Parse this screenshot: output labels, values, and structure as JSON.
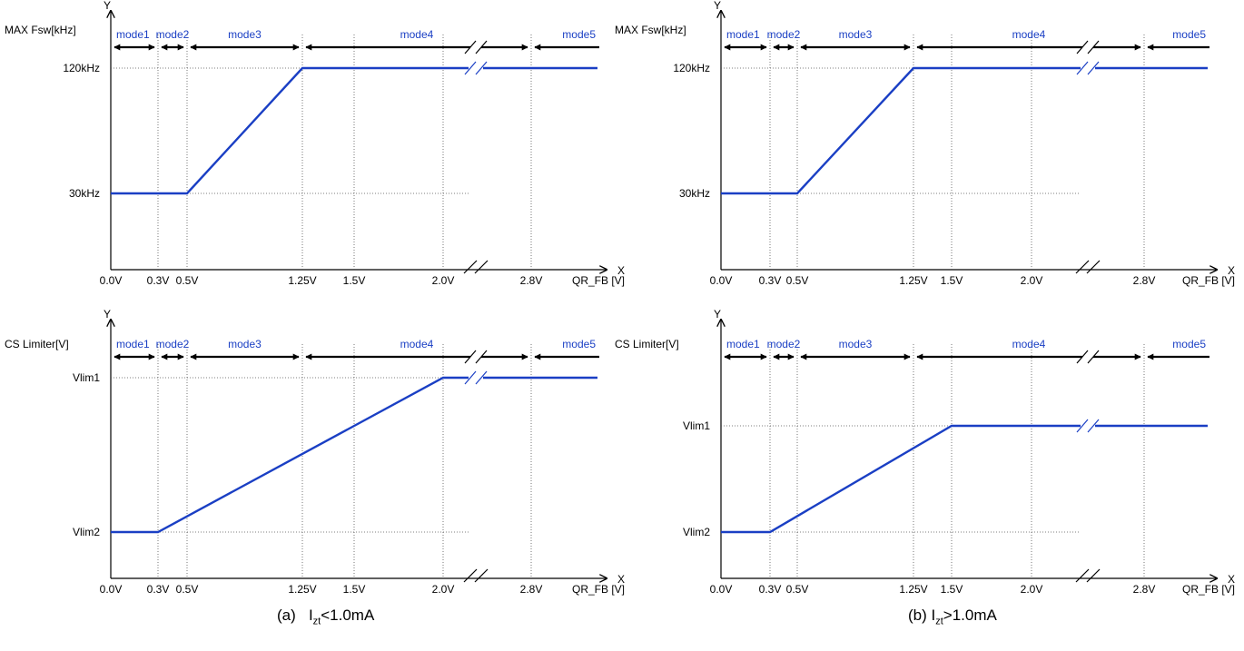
{
  "chart_data": [
    {
      "type": "line",
      "panel": "a-top",
      "y_label": "MAX Fsw[kHz]",
      "x_label": "QR_FB [V]",
      "x_axis": "X",
      "y_axis": "Y",
      "x_ticks": [
        "0.0V",
        "0.3V",
        "0.5V",
        "1.25V",
        "1.5V",
        "2.0V",
        "2.8V"
      ],
      "y_ticks": [
        "30kHz",
        "120kHz"
      ],
      "modes": [
        "mode1",
        "mode2",
        "mode3",
        "mode4",
        "mode5"
      ],
      "series": [
        {
          "points": [
            [
              0.0,
              30
            ],
            [
              0.5,
              30
            ],
            [
              1.25,
              120
            ],
            [
              2.8,
              120
            ]
          ]
        }
      ]
    },
    {
      "type": "line",
      "panel": "a-bottom",
      "y_label": "CS Limiter[V]",
      "x_label": "QR_FB [V]",
      "x_axis": "X",
      "y_axis": "Y",
      "x_ticks": [
        "0.0V",
        "0.3V",
        "0.5V",
        "1.25V",
        "1.5V",
        "2.0V",
        "2.8V"
      ],
      "y_ticks": [
        "Vlim2",
        "Vlim1"
      ],
      "modes": [
        "mode1",
        "mode2",
        "mode3",
        "mode4",
        "mode5"
      ],
      "series": [
        {
          "points": [
            [
              0.0,
              "Vlim2"
            ],
            [
              0.3,
              "Vlim2"
            ],
            [
              2.0,
              "Vlim1"
            ],
            [
              2.8,
              "Vlim1"
            ]
          ]
        }
      ]
    },
    {
      "type": "line",
      "panel": "b-top",
      "y_label": "MAX Fsw[kHz]",
      "x_label": "QR_FB [V]",
      "x_axis": "X",
      "y_axis": "Y",
      "x_ticks": [
        "0.0V",
        "0.3V",
        "0.5V",
        "1.25V",
        "1.5V",
        "2.0V",
        "2.8V"
      ],
      "y_ticks": [
        "30kHz",
        "120kHz"
      ],
      "modes": [
        "mode1",
        "mode2",
        "mode3",
        "mode4",
        "mode5"
      ],
      "series": [
        {
          "points": [
            [
              0.0,
              30
            ],
            [
              0.5,
              30
            ],
            [
              1.25,
              120
            ],
            [
              2.8,
              120
            ]
          ]
        }
      ]
    },
    {
      "type": "line",
      "panel": "b-bottom",
      "y_label": "CS Limiter[V]",
      "x_label": "QR_FB [V]",
      "x_axis": "X",
      "y_axis": "Y",
      "x_ticks": [
        "0.0V",
        "0.3V",
        "0.5V",
        "1.25V",
        "1.5V",
        "2.0V",
        "2.8V"
      ],
      "y_ticks": [
        "Vlim2",
        "Vlim1"
      ],
      "modes": [
        "mode1",
        "mode2",
        "mode3",
        "mode4",
        "mode5"
      ],
      "series": [
        {
          "points": [
            [
              0.0,
              "Vlim2"
            ],
            [
              0.3,
              "Vlim2"
            ],
            [
              1.5,
              "Vlim1"
            ],
            [
              2.8,
              "Vlim1"
            ]
          ]
        }
      ]
    }
  ],
  "captions": {
    "a": {
      "prefix": "(a)   I",
      "sub": "zt",
      "suffix": "<1.0mA"
    },
    "b": {
      "prefix": "(b) I",
      "sub": "zt",
      "suffix": ">1.0mA"
    }
  },
  "colors": {
    "curve": "#1a3fc4",
    "mode_text": "#1a3fc4",
    "axis": "#000000"
  }
}
